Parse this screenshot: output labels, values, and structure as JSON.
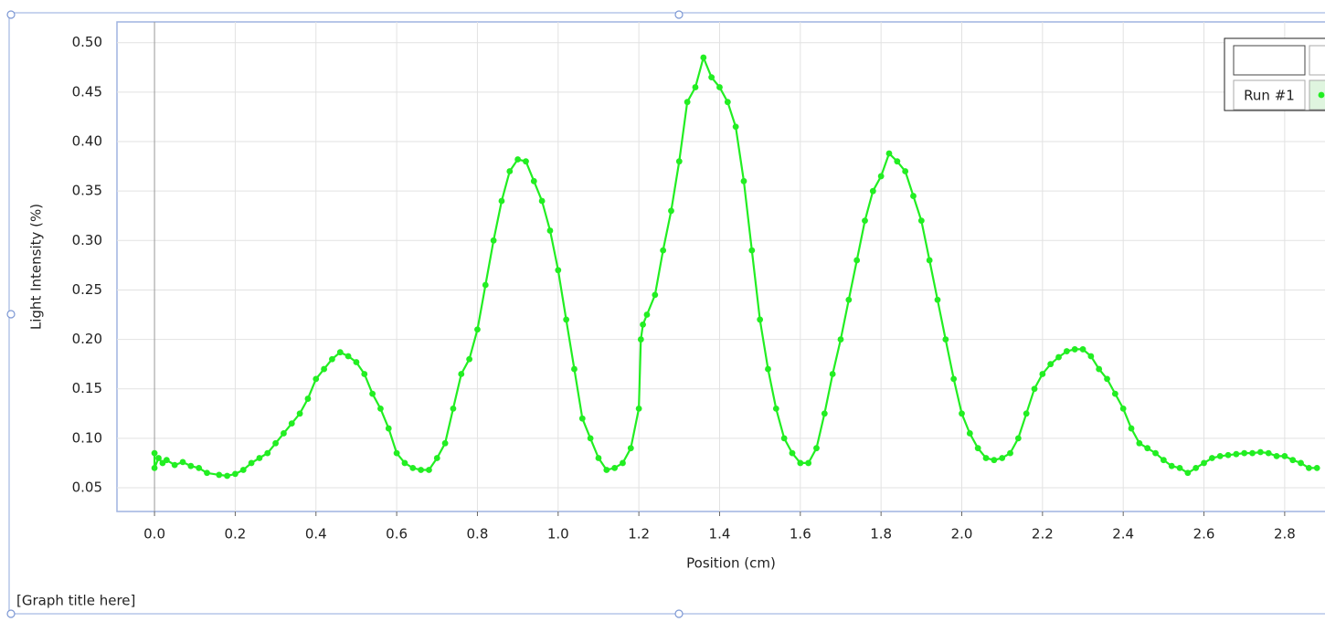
{
  "chart_data": {
    "type": "line",
    "title": "[Graph title here]",
    "x_label": "Position (cm)",
    "y_label": "Light Intensity (%)",
    "color": "#22ee22",
    "grid": true,
    "legend": "top-right",
    "xlim": [
      -0.093,
      2.918
    ],
    "ylim": [
      0.026,
      0.521
    ],
    "xticks": [
      {
        "value": 0,
        "label": "0.0"
      },
      0.2,
      0.4,
      0.6,
      0.8,
      {
        "value": 1,
        "label": "1.0"
      },
      1.2,
      1.4,
      1.6,
      1.8,
      {
        "value": 2,
        "label": "2.0"
      },
      2.2,
      2.4,
      2.6,
      2.8
    ],
    "yticks": [
      0.05,
      {
        "value": 0.1,
        "label": "0.10"
      },
      0.15,
      {
        "value": 0.2,
        "label": "0.20"
      },
      0.25,
      {
        "value": 0.3,
        "label": "0.30"
      },
      0.35,
      {
        "value": 0.4,
        "label": "0.40"
      },
      0.45,
      {
        "value": 0.5,
        "label": "0.50"
      }
    ],
    "x": [
      0,
      0,
      0.01,
      0.02,
      0.03,
      0.05,
      0.07,
      0.09,
      0.11,
      0.13,
      0.16,
      0.18,
      0.2,
      0.22,
      0.24,
      0.26,
      0.28,
      0.3,
      0.32,
      0.34,
      0.36,
      0.38,
      0.4,
      0.42,
      0.44,
      0.46,
      0.48,
      0.5,
      0.52,
      0.54,
      0.56,
      0.58,
      0.6,
      0.62,
      0.64,
      0.66,
      0.68,
      0.7,
      0.72,
      0.74,
      0.76,
      0.78,
      0.8,
      0.82,
      0.84,
      0.86,
      0.88,
      0.9,
      0.92,
      0.94,
      0.96,
      0.98,
      1,
      1.02,
      1.04,
      1.06,
      1.08,
      1.1,
      1.12,
      1.14,
      1.16,
      1.18,
      1.2,
      1.205,
      1.21,
      1.22,
      1.24,
      1.26,
      1.28,
      1.3,
      1.32,
      1.34,
      1.36,
      1.38,
      1.4,
      1.42,
      1.44,
      1.46,
      1.48,
      1.5,
      1.52,
      1.54,
      1.56,
      1.58,
      1.6,
      1.62,
      1.64,
      1.66,
      1.68,
      1.7,
      1.72,
      1.74,
      1.76,
      1.78,
      1.8,
      1.82,
      1.84,
      1.86,
      1.88,
      1.9,
      1.92,
      1.94,
      1.96,
      1.98,
      2,
      2.02,
      2.04,
      2.06,
      2.08,
      2.1,
      2.12,
      2.14,
      2.16,
      2.18,
      2.2,
      2.22,
      2.24,
      2.26,
      2.28,
      2.3,
      2.32,
      2.34,
      2.36,
      2.38,
      2.4,
      2.42,
      2.44,
      2.46,
      2.48,
      2.5,
      2.52,
      2.54,
      2.56,
      2.58,
      2.6,
      2.62,
      2.64,
      2.66,
      2.68,
      2.7,
      2.72,
      2.74,
      2.76,
      2.78,
      2.8,
      2.82,
      2.84,
      2.86,
      2.88
    ],
    "series": [
      {
        "name": "Run #1",
        "color": "#22ee22",
        "values": [
          0.085,
          0.07,
          0.08,
          0.075,
          0.078,
          0.073,
          0.076,
          0.072,
          0.07,
          0.065,
          0.063,
          0.062,
          0.064,
          0.068,
          0.075,
          0.08,
          0.085,
          0.095,
          0.105,
          0.115,
          0.125,
          0.14,
          0.16,
          0.17,
          0.18,
          0.187,
          0.183,
          0.177,
          0.165,
          0.145,
          0.13,
          0.11,
          0.085,
          0.075,
          0.07,
          0.068,
          0.068,
          0.08,
          0.095,
          0.13,
          0.165,
          0.18,
          0.21,
          0.255,
          0.3,
          0.34,
          0.37,
          0.382,
          0.38,
          0.36,
          0.34,
          0.31,
          0.27,
          0.22,
          0.17,
          0.12,
          0.1,
          0.08,
          0.068,
          0.07,
          0.075,
          0.09,
          0.13,
          0.2,
          0.215,
          0.225,
          0.245,
          0.29,
          0.33,
          0.38,
          0.44,
          0.455,
          0.485,
          0.465,
          0.455,
          0.44,
          0.415,
          0.36,
          0.29,
          0.22,
          0.17,
          0.13,
          0.1,
          0.085,
          0.075,
          0.075,
          0.09,
          0.125,
          0.165,
          0.2,
          0.24,
          0.28,
          0.32,
          0.35,
          0.365,
          0.388,
          0.38,
          0.37,
          0.345,
          0.32,
          0.28,
          0.24,
          0.2,
          0.16,
          0.125,
          0.105,
          0.09,
          0.08,
          0.078,
          0.08,
          0.085,
          0.1,
          0.125,
          0.15,
          0.165,
          0.175,
          0.182,
          0.188,
          0.19,
          0.19,
          0.183,
          0.17,
          0.16,
          0.145,
          0.13,
          0.11,
          0.095,
          0.09,
          0.085,
          0.078,
          0.072,
          0.07,
          0.065,
          0.07,
          0.075,
          0.08,
          0.082,
          0.083,
          0.084,
          0.085,
          0.085,
          0.086,
          0.085,
          0.082,
          0.082,
          0.078,
          0.075,
          0.07,
          0.07
        ]
      }
    ]
  }
}
